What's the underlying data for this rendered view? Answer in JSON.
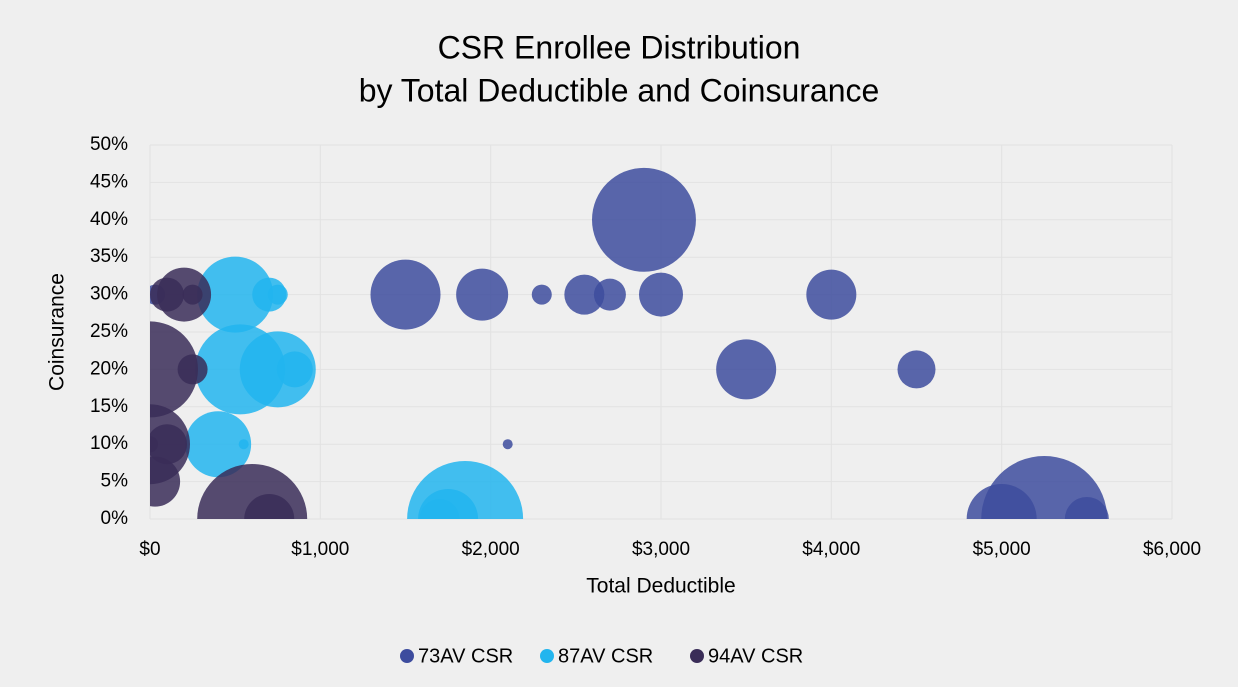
{
  "chart_data": {
    "type": "bubble",
    "title": [
      "CSR Enrollee Distribution",
      "by Total Deductible and Coinsurance"
    ],
    "x_label": "Total Deductible",
    "y_label": "Coinsurance",
    "xlim": [
      0,
      6000
    ],
    "xticks": [
      {
        "value": 0,
        "label": "$0"
      },
      {
        "value": 1000,
        "label": "$1,000"
      },
      {
        "value": 2000,
        "label": "$2,000"
      },
      {
        "value": 3000,
        "label": "$3,000"
      },
      {
        "value": 4000,
        "label": "$4,000"
      },
      {
        "value": 5000,
        "label": "$5,000"
      },
      {
        "value": 6000,
        "label": "$6,000"
      }
    ],
    "ylim": [
      0,
      50
    ],
    "yticks": [
      {
        "value": 0,
        "label": "0%"
      },
      {
        "value": 5,
        "label": "5%"
      },
      {
        "value": 10,
        "label": "10%"
      },
      {
        "value": 15,
        "label": "15%"
      },
      {
        "value": 20,
        "label": "20%"
      },
      {
        "value": 25,
        "label": "25%"
      },
      {
        "value": 30,
        "label": "30%"
      },
      {
        "value": 35,
        "label": "35%"
      },
      {
        "value": 40,
        "label": "40%"
      },
      {
        "value": 45,
        "label": "45%"
      },
      {
        "value": 50,
        "label": "50%"
      }
    ],
    "grid": true,
    "legend": "bottom",
    "series": [
      {
        "name": "73AV CSR",
        "color": "#3d4c9e",
        "x": [
          2900,
          1500,
          1950,
          2300,
          2550,
          2700,
          3000,
          4000,
          3500,
          4500,
          2100,
          5250,
          5000,
          5500,
          30
        ],
        "values": [
          40,
          30,
          30,
          30,
          30,
          30,
          30,
          30,
          20,
          20,
          10,
          0,
          0,
          0,
          30
        ],
        "sizes": [
          2700,
          1225,
          676,
          100,
          400,
          256,
          484,
          625,
          900,
          361,
          25,
          3970,
          1225,
          484,
          100
        ]
      },
      {
        "name": "87AV CSR",
        "color": "#22b5ee",
        "x": [
          500,
          700,
          750,
          530,
          750,
          850,
          400,
          550,
          1850,
          1750,
          1700
        ],
        "values": [
          30,
          30,
          30,
          20,
          20,
          20,
          10,
          10,
          0,
          0,
          0
        ],
        "sizes": [
          1444,
          289,
          100,
          2025,
          1444,
          324,
          1089,
          25,
          3364,
          900,
          400
        ]
      },
      {
        "name": "94AV CSR",
        "color": "#3a2d58",
        "x": [
          0,
          0,
          100,
          30,
          600,
          700,
          200,
          100,
          250,
          250,
          0
        ],
        "values": [
          20,
          10,
          10,
          5,
          0,
          0,
          30,
          30,
          30,
          20,
          10
        ],
        "sizes": [
          2304,
          1600,
          400,
          625,
          3025,
          625,
          729,
          289,
          100,
          225,
          64
        ]
      }
    ]
  }
}
